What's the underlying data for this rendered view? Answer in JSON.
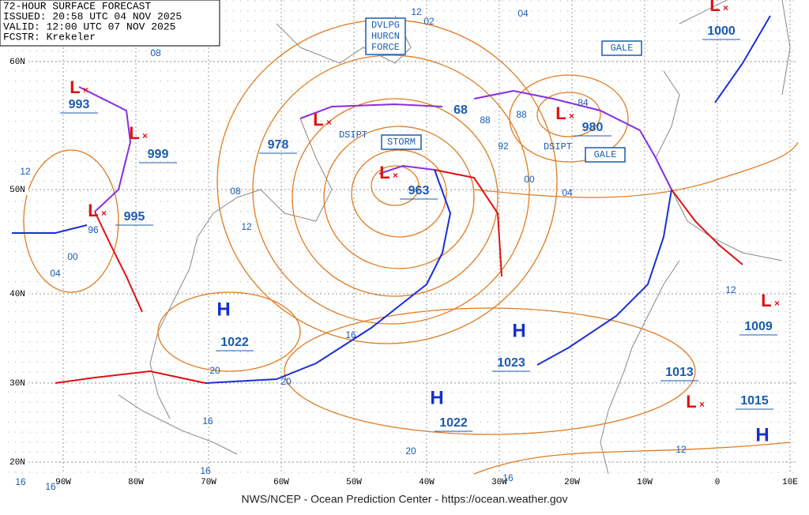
{
  "header": {
    "lines": [
      "72-HOUR SURFACE FORECAST",
      "ISSUED: 20:58 UTC 04 NOV 2025",
      "VALID: 12:00 UTC 07 NOV 2025",
      "FCSTR: Krekeler"
    ]
  },
  "lat_labels": [
    "60N",
    "50N",
    "40N",
    "30N",
    "20N"
  ],
  "lon_labels": [
    "90W",
    "80W",
    "70W",
    "60W",
    "50W",
    "40W",
    "30W",
    "20W",
    "10W",
    "0",
    "10E"
  ],
  "pressure_centers": [
    {
      "label": "L",
      "pressure": 993
    },
    {
      "label": "L",
      "pressure": 999
    },
    {
      "label": "L",
      "pressure": 995
    },
    {
      "label": "L",
      "pressure": 978
    },
    {
      "label": "L",
      "pressure": 963
    },
    {
      "label": "L",
      "pressure": 980
    },
    {
      "label": "L",
      "pressure": 1000
    },
    {
      "label": "L",
      "pressure": 1009
    },
    {
      "label": "L",
      "pressure": 1015
    },
    {
      "label": "H",
      "pressure": 1022
    },
    {
      "label": "H",
      "pressure": 1023
    },
    {
      "label": "H",
      "pressure": 1022
    },
    {
      "label": "H"
    },
    {
      "pressure": 1013
    }
  ],
  "isobar_labels": [
    "08",
    "12",
    "96",
    "00",
    "04",
    "08",
    "12",
    "16",
    "20",
    "20",
    "16",
    "16",
    "16",
    "16",
    "20",
    "16",
    "12",
    "12",
    "04",
    "00",
    "92",
    "88",
    "88",
    "84",
    "68",
    "04",
    "12",
    "02"
  ],
  "warnings": [
    {
      "lines": [
        "DVLPG",
        "HURCN",
        "FORCE"
      ]
    },
    {
      "lines": [
        "STORM"
      ]
    },
    {
      "lines": [
        "GALE"
      ]
    },
    {
      "lines": [
        "GALE"
      ]
    },
    {
      "lines": [
        "DSIPT"
      ]
    },
    {
      "lines": [
        "DSIPT"
      ]
    }
  ],
  "footer": "NWS/NCEP - Ocean Prediction Center - https://ocean.weather.gov"
}
